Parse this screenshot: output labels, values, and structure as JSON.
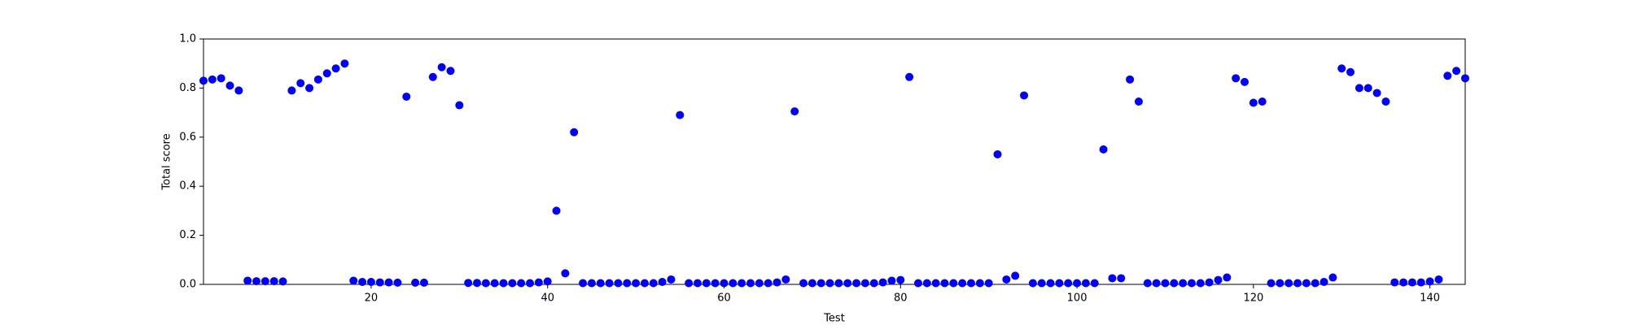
{
  "chart_data": {
    "type": "scatter",
    "xlabel": "Test",
    "ylabel": "Total score",
    "color": "#0000ff",
    "x": [
      1,
      2,
      3,
      4,
      5,
      6,
      7,
      8,
      9,
      10,
      11,
      12,
      13,
      14,
      15,
      16,
      17,
      18,
      19,
      20,
      21,
      22,
      23,
      24,
      25,
      26,
      27,
      28,
      29,
      30,
      31,
      32,
      33,
      34,
      35,
      36,
      37,
      38,
      39,
      40,
      41,
      42,
      43,
      44,
      45,
      46,
      47,
      48,
      49,
      50,
      51,
      52,
      53,
      54,
      55,
      56,
      57,
      58,
      59,
      60,
      61,
      62,
      63,
      64,
      65,
      66,
      67,
      68,
      69,
      70,
      71,
      72,
      73,
      74,
      75,
      76,
      77,
      78,
      79,
      80,
      81,
      82,
      83,
      84,
      85,
      86,
      87,
      88,
      89,
      90,
      91,
      92,
      93,
      94,
      95,
      96,
      97,
      98,
      99,
      100,
      101,
      102,
      103,
      104,
      105,
      106,
      107,
      108,
      109,
      110,
      111,
      112,
      113,
      114,
      115,
      116,
      117,
      118,
      119,
      120,
      121,
      122,
      123,
      124,
      125,
      126,
      127,
      128,
      129,
      130,
      131,
      132,
      133,
      134,
      135,
      136,
      137,
      138,
      139,
      140,
      141,
      142,
      143,
      144
    ],
    "values": [
      0.83,
      0.835,
      0.84,
      0.81,
      0.79,
      0.015,
      0.013,
      0.013,
      0.013,
      0.012,
      0.79,
      0.82,
      0.8,
      0.835,
      0.86,
      0.88,
      0.9,
      0.015,
      0.01,
      0.01,
      0.008,
      0.008,
      0.007,
      0.765,
      0.007,
      0.007,
      0.845,
      0.885,
      0.87,
      0.73,
      0.006,
      0.006,
      0.005,
      0.005,
      0.005,
      0.005,
      0.005,
      0.005,
      0.008,
      0.012,
      0.3,
      0.045,
      0.62,
      0.005,
      0.005,
      0.005,
      0.005,
      0.005,
      0.005,
      0.005,
      0.005,
      0.005,
      0.01,
      0.02,
      0.69,
      0.005,
      0.005,
      0.005,
      0.005,
      0.005,
      0.005,
      0.005,
      0.005,
      0.005,
      0.005,
      0.008,
      0.02,
      0.705,
      0.005,
      0.005,
      0.005,
      0.005,
      0.005,
      0.005,
      0.005,
      0.005,
      0.005,
      0.008,
      0.015,
      0.018,
      0.845,
      0.005,
      0.005,
      0.005,
      0.005,
      0.005,
      0.005,
      0.005,
      0.005,
      0.005,
      0.53,
      0.02,
      0.035,
      0.77,
      0.005,
      0.005,
      0.005,
      0.005,
      0.005,
      0.005,
      0.005,
      0.005,
      0.55,
      0.025,
      0.025,
      0.835,
      0.745,
      0.005,
      0.005,
      0.005,
      0.005,
      0.005,
      0.005,
      0.005,
      0.008,
      0.018,
      0.028,
      0.84,
      0.825,
      0.74,
      0.745,
      0.005,
      0.005,
      0.005,
      0.005,
      0.005,
      0.005,
      0.01,
      0.028,
      0.88,
      0.865,
      0.8,
      0.8,
      0.78,
      0.745,
      0.008,
      0.008,
      0.008,
      0.008,
      0.012,
      0.02,
      0.85,
      0.87,
      0.84
    ],
    "xlim": [
      1,
      144
    ],
    "xticks": [
      20,
      40,
      60,
      80,
      100,
      120,
      140
    ],
    "ylim": [
      0,
      1
    ],
    "yticks": [
      {
        "value": 0,
        "label": "0.0"
      },
      {
        "value": 0.2,
        "label": "0.2"
      },
      {
        "value": 0.4,
        "label": "0.4"
      },
      {
        "value": 0.6,
        "label": "0.6"
      },
      {
        "value": 0.8,
        "label": "0.8"
      },
      {
        "value": 1,
        "label": "1.0"
      }
    ]
  }
}
